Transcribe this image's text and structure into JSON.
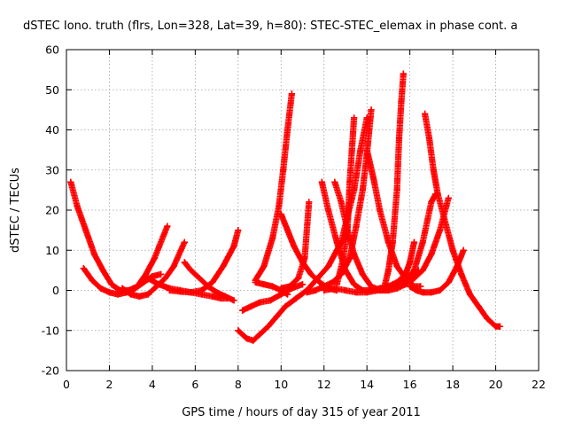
{
  "chart_data": {
    "type": "scatter",
    "title": "dSTEC Iono. truth (flrs, Lon=328, Lat=39, h=80): STEC-STEC_elemax in phase cont. a",
    "xlabel": "GPS time / hours of day 315 of year 2011",
    "ylabel": "dSTEC  / TECUs",
    "xlim": [
      0,
      22
    ],
    "ylim": [
      -20,
      60
    ],
    "xticks": [
      "0",
      "2",
      "4",
      "6",
      "8",
      "10",
      "12",
      "14",
      "16",
      "18",
      "20",
      "22"
    ],
    "yticks": [
      "-20",
      "-10",
      "0",
      "10",
      "20",
      "30",
      "40",
      "50",
      "60"
    ],
    "grid": true,
    "marker": "plus",
    "color": "#ff0000",
    "series": [
      {
        "points": [
          [
            0.2,
            27
          ],
          [
            0.5,
            21
          ],
          [
            0.9,
            15
          ],
          [
            1.3,
            9
          ],
          [
            1.7,
            5
          ],
          [
            2.1,
            1.5
          ],
          [
            2.5,
            0
          ],
          [
            2.9,
            0
          ],
          [
            3.3,
            1
          ],
          [
            3.7,
            4
          ],
          [
            4.1,
            8
          ],
          [
            4.7,
            16
          ]
        ]
      },
      {
        "points": [
          [
            0.8,
            5.5
          ],
          [
            1.2,
            2.5
          ],
          [
            1.6,
            0.5
          ],
          [
            2.0,
            -0.5
          ],
          [
            2.4,
            -1
          ],
          [
            2.8,
            -0.5
          ],
          [
            3.2,
            0.5
          ],
          [
            3.6,
            2
          ],
          [
            4.0,
            3.5
          ],
          [
            4.4,
            4
          ]
        ]
      },
      {
        "points": [
          [
            2.6,
            0.5
          ],
          [
            3.0,
            -1
          ],
          [
            3.4,
            -1.5
          ],
          [
            3.8,
            -1
          ],
          [
            4.2,
            1
          ],
          [
            4.6,
            3
          ],
          [
            5.0,
            6
          ],
          [
            5.5,
            12
          ]
        ]
      },
      {
        "points": [
          [
            3.8,
            3
          ],
          [
            4.3,
            1.5
          ],
          [
            4.8,
            0.5
          ],
          [
            5.3,
            0
          ],
          [
            5.8,
            -0.5
          ],
          [
            6.3,
            -1
          ],
          [
            6.8,
            -1.5
          ],
          [
            7.2,
            -2
          ],
          [
            7.5,
            -2
          ]
        ]
      },
      {
        "points": [
          [
            5.5,
            7
          ],
          [
            5.8,
            5
          ],
          [
            6.2,
            3
          ],
          [
            6.6,
            1
          ],
          [
            7.0,
            -0.5
          ],
          [
            7.4,
            -1.5
          ],
          [
            7.8,
            -2.5
          ]
        ]
      },
      {
        "points": [
          [
            4.8,
            0
          ],
          [
            5.3,
            -0.3
          ],
          [
            5.8,
            -0.5
          ],
          [
            6.3,
            0
          ],
          [
            6.8,
            2
          ],
          [
            7.3,
            6
          ],
          [
            7.8,
            11
          ],
          [
            8.0,
            15
          ]
        ]
      },
      {
        "points": [
          [
            8.2,
            -5
          ],
          [
            8.6,
            -4
          ],
          [
            9.0,
            -3
          ],
          [
            9.5,
            -2.5
          ],
          [
            10.0,
            -1
          ],
          [
            10.5,
            0.5
          ],
          [
            11.0,
            1.5
          ]
        ]
      },
      {
        "points": [
          [
            8.0,
            -10
          ],
          [
            8.4,
            -12
          ],
          [
            8.7,
            -12.5
          ],
          [
            9.0,
            -11
          ],
          [
            9.4,
            -9
          ],
          [
            9.8,
            -6.5
          ],
          [
            10.2,
            -4
          ],
          [
            10.7,
            -2
          ],
          [
            11.2,
            0
          ],
          [
            11.7,
            3
          ],
          [
            12.2,
            6
          ],
          [
            12.8,
            12
          ],
          [
            13.4,
            25
          ],
          [
            13.7,
            35
          ],
          [
            14.0,
            43
          ]
        ]
      },
      {
        "points": [
          [
            8.8,
            2
          ],
          [
            9.2,
            1.5
          ],
          [
            9.6,
            1
          ],
          [
            10.0,
            0
          ],
          [
            10.3,
            -1
          ]
        ]
      },
      {
        "points": [
          [
            8.8,
            2.5
          ],
          [
            9.2,
            6
          ],
          [
            9.6,
            13
          ],
          [
            9.9,
            21
          ],
          [
            10.1,
            30
          ],
          [
            10.3,
            40
          ],
          [
            10.5,
            49
          ]
        ]
      },
      {
        "points": [
          [
            10.0,
            0.5
          ],
          [
            10.4,
            1
          ],
          [
            10.8,
            3
          ],
          [
            11.1,
            8
          ],
          [
            11.3,
            22
          ]
        ]
      },
      {
        "points": [
          [
            10.0,
            19
          ],
          [
            10.3,
            15
          ],
          [
            10.6,
            11
          ],
          [
            11.0,
            7
          ],
          [
            11.4,
            4
          ],
          [
            11.8,
            2
          ],
          [
            12.2,
            0.5
          ],
          [
            12.6,
            0
          ]
        ]
      },
      {
        "points": [
          [
            11.2,
            -0.5
          ],
          [
            11.6,
            0
          ],
          [
            12.0,
            1
          ],
          [
            12.4,
            2
          ],
          [
            12.8,
            4
          ],
          [
            13.2,
            8
          ],
          [
            13.5,
            16
          ],
          [
            13.8,
            25
          ],
          [
            14.0,
            34
          ],
          [
            14.2,
            45
          ]
        ]
      },
      {
        "points": [
          [
            11.9,
            27
          ],
          [
            12.2,
            20
          ],
          [
            12.6,
            12
          ],
          [
            13.0,
            5
          ],
          [
            13.4,
            1.5
          ],
          [
            13.8,
            0
          ],
          [
            14.2,
            0
          ],
          [
            14.6,
            0.5
          ],
          [
            15.0,
            1
          ],
          [
            15.4,
            2
          ],
          [
            15.8,
            4
          ],
          [
            16.0,
            7
          ],
          [
            16.2,
            12
          ]
        ]
      },
      {
        "points": [
          [
            12.5,
            27
          ],
          [
            12.8,
            22
          ],
          [
            13.1,
            15
          ],
          [
            13.4,
            9
          ],
          [
            13.8,
            4
          ],
          [
            14.2,
            1
          ],
          [
            14.6,
            0
          ],
          [
            15.0,
            0
          ],
          [
            15.4,
            0.5
          ],
          [
            15.8,
            1.5
          ],
          [
            16.2,
            3
          ],
          [
            16.6,
            5
          ],
          [
            17.0,
            9
          ],
          [
            17.4,
            15
          ],
          [
            17.7,
            21
          ],
          [
            17.8,
            23
          ]
        ]
      },
      {
        "points": [
          [
            12.6,
            1.5
          ],
          [
            12.9,
            8
          ],
          [
            13.1,
            16
          ],
          [
            13.2,
            27
          ],
          [
            13.3,
            35
          ],
          [
            13.4,
            43
          ]
        ]
      },
      {
        "points": [
          [
            12.0,
            0
          ],
          [
            12.5,
            0.5
          ],
          [
            13.0,
            0
          ],
          [
            13.5,
            -0.5
          ],
          [
            14.0,
            -0.5
          ],
          [
            14.5,
            0
          ],
          [
            15.0,
            0.5
          ],
          [
            15.5,
            1.5
          ],
          [
            16.0,
            3
          ],
          [
            16.4,
            5
          ]
        ]
      },
      {
        "points": [
          [
            14.0,
            35
          ],
          [
            14.3,
            28
          ],
          [
            14.6,
            20
          ],
          [
            15.0,
            12
          ],
          [
            15.4,
            6
          ],
          [
            15.8,
            3
          ],
          [
            16.2,
            1
          ],
          [
            16.5,
            1
          ]
        ]
      },
      {
        "points": [
          [
            14.8,
            0.5
          ],
          [
            15.0,
            5
          ],
          [
            15.2,
            12
          ],
          [
            15.4,
            25
          ],
          [
            15.5,
            38
          ],
          [
            15.6,
            47
          ],
          [
            15.7,
            54
          ]
        ]
      },
      {
        "points": [
          [
            15.8,
            2
          ],
          [
            16.2,
            5
          ],
          [
            16.6,
            12
          ],
          [
            17.0,
            22
          ],
          [
            17.2,
            24
          ]
        ]
      },
      {
        "points": [
          [
            16.7,
            44
          ],
          [
            16.9,
            38
          ],
          [
            17.1,
            30
          ],
          [
            17.3,
            24
          ],
          [
            17.6,
            18
          ],
          [
            18.0,
            10
          ],
          [
            18.4,
            4
          ],
          [
            18.8,
            -1
          ],
          [
            19.2,
            -4
          ],
          [
            19.6,
            -7
          ],
          [
            20.0,
            -9
          ],
          [
            20.2,
            -9
          ]
        ]
      },
      {
        "points": [
          [
            16.0,
            1
          ],
          [
            16.3,
            0
          ],
          [
            16.6,
            -0.5
          ],
          [
            17.0,
            -0.5
          ],
          [
            17.4,
            0
          ],
          [
            17.8,
            2
          ],
          [
            18.2,
            6
          ],
          [
            18.5,
            10
          ]
        ]
      }
    ]
  }
}
